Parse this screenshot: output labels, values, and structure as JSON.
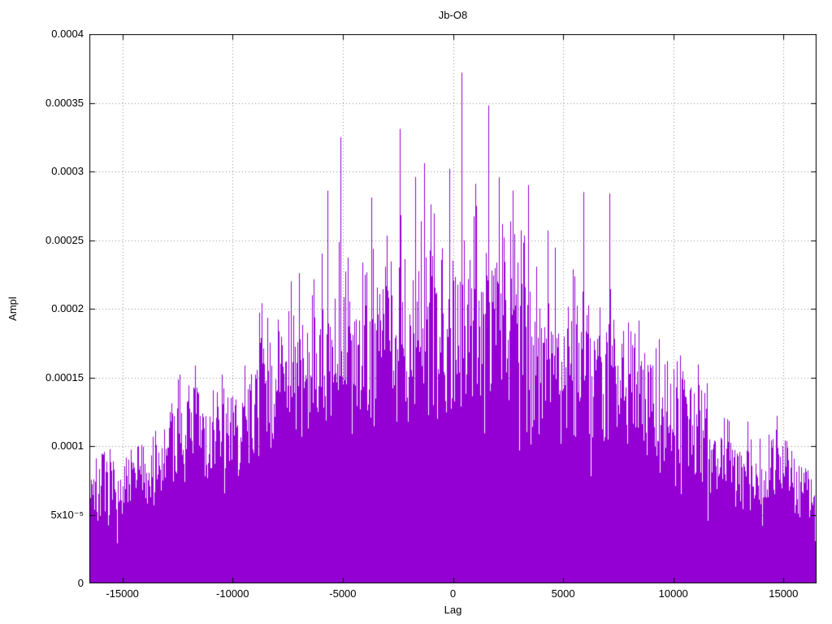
{
  "chart_data": {
    "type": "bar",
    "style": "impulses",
    "title": "Jb-O8",
    "xlabel": "Lag",
    "ylabel": "Ampl",
    "xlim": [
      -16500,
      16500
    ],
    "ylim": [
      0,
      0.0004
    ],
    "grid": true,
    "legend": "none",
    "series_color": "#9400d3",
    "grid_color": "#909090",
    "border_color": "#000000",
    "background_color": "#ffffff",
    "noise_seed": 7,
    "x_ticks": [
      {
        "value": -15000,
        "label": "-15000"
      },
      {
        "value": -10000,
        "label": "-10000"
      },
      {
        "value": -5000,
        "label": "-5000"
      },
      {
        "value": 0,
        "label": "0"
      },
      {
        "value": 5000,
        "label": "5000"
      },
      {
        "value": 10000,
        "label": "10000"
      },
      {
        "value": 15000,
        "label": "15000"
      }
    ],
    "y_ticks": [
      {
        "value": 0,
        "label": "0"
      },
      {
        "value": 5e-05,
        "label": "5x10⁻⁵"
      },
      {
        "value": 0.0001,
        "label": "0.0001"
      },
      {
        "value": 0.00015,
        "label": "0.00015"
      },
      {
        "value": 0.0002,
        "label": "0.0002"
      },
      {
        "value": 0.00025,
        "label": "0.00025"
      },
      {
        "value": 0.0003,
        "label": "0.0003"
      },
      {
        "value": 0.00035,
        "label": "0.00035"
      },
      {
        "value": 0.0004,
        "label": "0.0004"
      }
    ],
    "envelope": [
      [
        -16500,
        8.2e-05
      ],
      [
        -15800,
        9.5e-05
      ],
      [
        -15000,
        8.6e-05
      ],
      [
        -14200,
        0.000105
      ],
      [
        -13400,
        0.000108
      ],
      [
        -12500,
        0.00015
      ],
      [
        -11600,
        0.000145
      ],
      [
        -10800,
        0.000132
      ],
      [
        -10000,
        0.00014
      ],
      [
        -9300,
        0.000155
      ],
      [
        -8700,
        0.000198
      ],
      [
        -8000,
        0.000185
      ],
      [
        -7200,
        0.000205
      ],
      [
        -6400,
        0.000212
      ],
      [
        -5600,
        0.000232
      ],
      [
        -4800,
        0.000228
      ],
      [
        -4000,
        0.000232
      ],
      [
        -3200,
        0.000248
      ],
      [
        -2400,
        0.000255
      ],
      [
        -1600,
        0.000248
      ],
      [
        -800,
        0.000252
      ],
      [
        0,
        0.00025
      ],
      [
        800,
        0.000255
      ],
      [
        1600,
        0.00025
      ],
      [
        2400,
        0.000248
      ],
      [
        3200,
        0.000242
      ],
      [
        4000,
        0.000232
      ],
      [
        4800,
        0.000225
      ],
      [
        5600,
        0.000218
      ],
      [
        6400,
        0.000205
      ],
      [
        7200,
        0.000198
      ],
      [
        8000,
        0.000188
      ],
      [
        8800,
        0.000172
      ],
      [
        9600,
        0.000162
      ],
      [
        10400,
        0.000158
      ],
      [
        11200,
        0.000148
      ],
      [
        12000,
        0.000128
      ],
      [
        12800,
        0.00011
      ],
      [
        13600,
        0.0001
      ],
      [
        14400,
        9.8e-05
      ],
      [
        15000,
        0.000112
      ],
      [
        15600,
        9.2e-05
      ],
      [
        16500,
        8.5e-05
      ]
    ],
    "peaks": [
      [
        -12400,
        0.000152
      ],
      [
        -8700,
        0.000204
      ],
      [
        -7000,
        0.000226
      ],
      [
        -5700,
        0.000286
      ],
      [
        -5100,
        0.000325
      ],
      [
        -3700,
        0.000281
      ],
      [
        -2400,
        0.000331
      ],
      [
        -1700,
        0.000296
      ],
      [
        -1300,
        0.000306
      ],
      [
        -150,
        0.000302
      ],
      [
        400,
        0.000372
      ],
      [
        1000,
        0.000291
      ],
      [
        1600,
        0.000348
      ],
      [
        2700,
        0.000286
      ],
      [
        3400,
        0.00029
      ],
      [
        4300,
        0.000257
      ],
      [
        5900,
        0.000285
      ],
      [
        7100,
        0.000284
      ],
      [
        10300,
        0.000166
      ],
      [
        14700,
        0.000122
      ]
    ]
  }
}
